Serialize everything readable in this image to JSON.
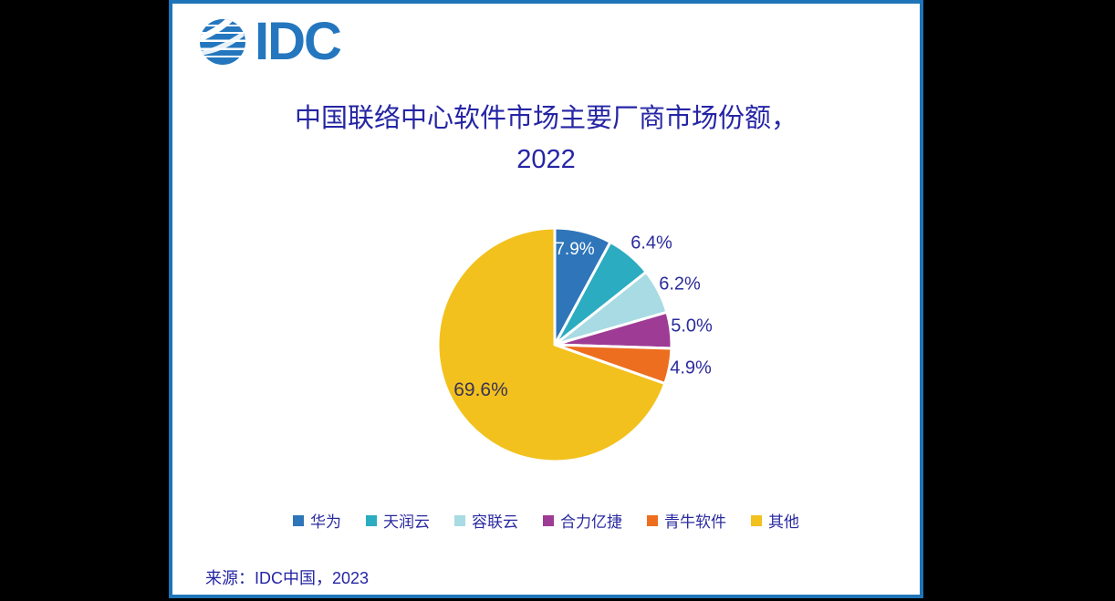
{
  "window": {
    "background": "#000000",
    "card_border_color": "#1E74B8"
  },
  "logo": {
    "text": "IDC",
    "color": "#2477BE"
  },
  "title": {
    "line1": "中国联络中心软件市场主要厂商市场份额，",
    "line2": "2022",
    "color": "#2525A5"
  },
  "chart_data": {
    "type": "pie",
    "title": "中国联络中心软件市场主要厂商市场份额，2022",
    "start_angle_deg": 0,
    "direction": "clockwise",
    "legend_position": "bottom",
    "slice_gap_color": "#FFFFFF",
    "series": [
      {
        "name": "华为",
        "value": 7.9,
        "label": "7.9%",
        "color": "#2E75B9",
        "label_color": "#FFFFFF",
        "label_placement": "inside"
      },
      {
        "name": "天润云",
        "value": 6.4,
        "label": "6.4%",
        "color": "#2BACC0",
        "label_color": "#2B2B9C",
        "label_placement": "outside"
      },
      {
        "name": "容联云",
        "value": 6.2,
        "label": "6.2%",
        "color": "#A8DBE3",
        "label_color": "#2B2B9C",
        "label_placement": "outside"
      },
      {
        "name": "合力亿捷",
        "value": 5.0,
        "label": "5.0%",
        "color": "#9E3B94",
        "label_color": "#2B2B9C",
        "label_placement": "outside"
      },
      {
        "name": "青牛软件",
        "value": 4.9,
        "label": "4.9%",
        "color": "#ED6E1E",
        "label_color": "#2B2B9C",
        "label_placement": "outside"
      },
      {
        "name": "其他",
        "value": 69.6,
        "label": "69.6%",
        "color": "#F2C11D",
        "label_color": "#3A3355",
        "label_placement": "inside"
      }
    ]
  },
  "source": {
    "text": "来源：IDC中国，2023"
  }
}
